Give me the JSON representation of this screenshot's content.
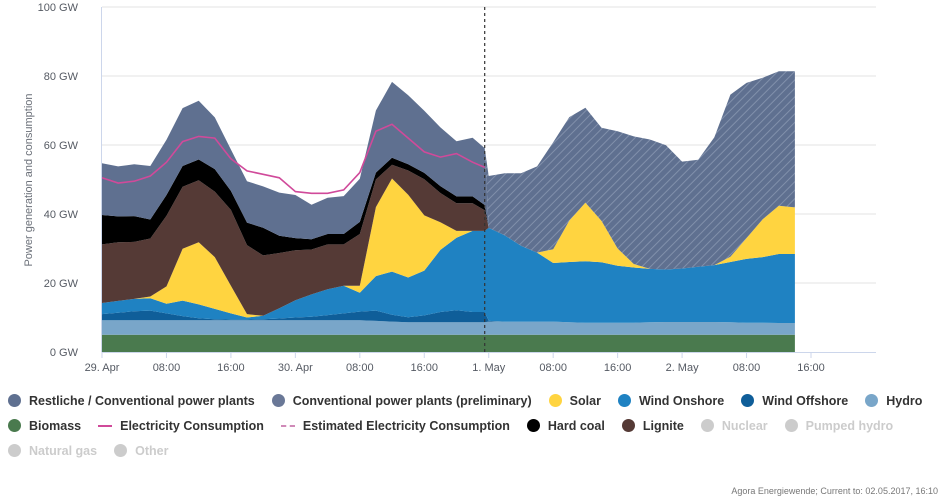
{
  "chart_data": {
    "type": "area",
    "title": "",
    "ylabel": "Power generation and consumption",
    "xlabel": "",
    "ylim": [
      0,
      100
    ],
    "y_unit": "GW",
    "y_ticks": [
      "0 GW",
      "20 GW",
      "40 GW",
      "60 GW",
      "80 GW",
      "100 GW"
    ],
    "y_tick_values": [
      0,
      20,
      40,
      60,
      80,
      100
    ],
    "x_ticks": [
      {
        "label": "29. Apr",
        "hour": 0
      },
      {
        "label": "08:00",
        "hour": 8
      },
      {
        "label": "16:00",
        "hour": 16
      },
      {
        "label": "30. Apr",
        "hour": 24
      },
      {
        "label": "08:00",
        "hour": 32
      },
      {
        "label": "16:00",
        "hour": 40
      },
      {
        "label": "1. May",
        "hour": 48
      },
      {
        "label": "08:00",
        "hour": 56
      },
      {
        "label": "16:00",
        "hour": 64
      },
      {
        "label": "2. May",
        "hour": 72
      },
      {
        "label": "08:00",
        "hour": 80
      },
      {
        "label": "16:00",
        "hour": 88
      }
    ],
    "x_range_hours": [
      0,
      96
    ],
    "forecast_divider_hour": 47.5,
    "grid": true,
    "legend_position": "bottom",
    "x_hours": [
      0,
      2,
      4,
      6,
      8,
      10,
      12,
      14,
      16,
      18,
      20,
      22,
      24,
      26,
      28,
      30,
      32,
      34,
      36,
      38,
      40,
      42,
      44,
      46,
      47.5,
      48,
      50,
      52,
      54,
      56,
      58,
      60,
      62,
      64,
      66,
      68,
      70,
      72,
      74,
      76,
      78,
      80,
      82,
      84,
      86
    ],
    "series": [
      {
        "name": "Biomass",
        "color": "#4a7a4e",
        "stack": true,
        "values": [
          5,
          5,
          5,
          5,
          5,
          5,
          5,
          5,
          5,
          5,
          5,
          5,
          5,
          5,
          5,
          5,
          5,
          5,
          5,
          5,
          5,
          5,
          5,
          5,
          5,
          5,
          5,
          5,
          5,
          5,
          5,
          5,
          5,
          5,
          5,
          5,
          5,
          5,
          5,
          5,
          5,
          5,
          5,
          5,
          5
        ]
      },
      {
        "name": "Hydro",
        "color": "#79a6c9",
        "stack": true,
        "values": [
          4.2,
          4.2,
          4.2,
          4.2,
          4.2,
          4.2,
          4.2,
          4.2,
          4.2,
          4.2,
          4.2,
          4.2,
          4.2,
          4.2,
          4.2,
          4.2,
          4.2,
          4.0,
          3.8,
          3.6,
          3.6,
          3.6,
          3.6,
          3.6,
          3.6,
          3.8,
          3.8,
          3.8,
          3.8,
          3.8,
          3.6,
          3.5,
          3.5,
          3.5,
          3.5,
          3.6,
          3.7,
          3.7,
          3.7,
          3.7,
          3.6,
          3.5,
          3.5,
          3.4,
          3.4
        ]
      },
      {
        "name": "Wind Offshore",
        "color": "#0f5e99",
        "stack": true,
        "values": [
          1.8,
          2.2,
          2.6,
          2.8,
          2.0,
          1.2,
          0.6,
          0.3,
          0.2,
          0.2,
          0.3,
          0.5,
          0.8,
          1.0,
          1.5,
          2.0,
          2.5,
          3.0,
          2.0,
          1.5,
          2.0,
          3.0,
          3.5,
          3.0,
          3.0,
          0.2,
          0,
          0,
          0,
          0,
          0,
          0,
          0,
          0,
          0,
          0,
          0,
          0,
          0,
          0,
          0,
          0,
          0,
          0,
          0
        ]
      },
      {
        "name": "Wind Onshore",
        "color": "#1f82c2",
        "stack": true,
        "values": [
          3.2,
          3.4,
          3.6,
          3.6,
          2.8,
          4.5,
          4.0,
          3.0,
          1.8,
          0.6,
          1.0,
          3.0,
          5.0,
          6.5,
          7.5,
          8.0,
          5.5,
          10.0,
          12.5,
          11.5,
          13.0,
          18.0,
          21.0,
          23.5,
          23.5,
          27.0,
          25.0,
          22.0,
          20.0,
          17.0,
          17.5,
          17.8,
          17.5,
          16.5,
          16.0,
          15.5,
          15.2,
          15.5,
          16.0,
          16.5,
          17.5,
          18.5,
          19.0,
          20.0,
          20.0
        ]
      },
      {
        "name": "Solar",
        "color": "#ffd440",
        "stack": true,
        "values": [
          0,
          0,
          0,
          0.5,
          5.0,
          15.0,
          18.0,
          15.0,
          8.0,
          1.0,
          0,
          0,
          0,
          0,
          0,
          0,
          2.0,
          20.0,
          27.0,
          24.0,
          16.0,
          8.0,
          2.0,
          0,
          0,
          0,
          0,
          0,
          0,
          4.0,
          12.0,
          17.0,
          12.0,
          5.0,
          1.0,
          0,
          0,
          0,
          0,
          0,
          1.5,
          6.0,
          11.0,
          14.0,
          13.5
        ]
      },
      {
        "name": "Lignite",
        "color": "#553a36",
        "stack": true,
        "values": [
          17.0,
          17.0,
          16.5,
          16.8,
          20.5,
          18.0,
          18.0,
          19.0,
          22.0,
          20.0,
          17.5,
          16.0,
          14.5,
          13.0,
          13.0,
          12.0,
          15.0,
          8.0,
          4.0,
          7.0,
          10.5,
          8.5,
          8.0,
          8.0,
          6.0,
          0,
          0,
          0,
          0,
          0,
          0,
          0,
          0,
          0,
          0,
          0,
          0,
          0,
          0,
          0,
          0,
          0,
          0,
          0,
          0
        ]
      },
      {
        "name": "Hard coal",
        "color": "#000000",
        "stack": true,
        "values": [
          8.5,
          7.5,
          7.5,
          5.5,
          6.0,
          6.0,
          6.0,
          6.5,
          5.5,
          6.5,
          8.0,
          5.0,
          3.5,
          3.0,
          3.0,
          3.0,
          3.5,
          2.0,
          2.0,
          1.8,
          1.8,
          2.0,
          2.0,
          2.0,
          1.5,
          0,
          0,
          0,
          0,
          0,
          0,
          0,
          0,
          0,
          0,
          0,
          0,
          0,
          0,
          0,
          0,
          0,
          0,
          0,
          0
        ]
      },
      {
        "name": "Restliche / Conventional power plants",
        "color": "#5f7090",
        "stack": true,
        "values": [
          15.0,
          14.5,
          15.0,
          15.5,
          16.0,
          16.8,
          17.0,
          15.0,
          12.0,
          12.0,
          12.0,
          12.5,
          12.5,
          10.0,
          10.5,
          11.0,
          12.5,
          18.0,
          22.0,
          20.0,
          18.0,
          17.0,
          16.0,
          17.0,
          16.5,
          0,
          0,
          0,
          0,
          0,
          0,
          0,
          0,
          0,
          0,
          0,
          0,
          0,
          0,
          0,
          0,
          0,
          0,
          0,
          0
        ]
      },
      {
        "name": "Conventional power plants (preliminary)",
        "color": "#5f7090",
        "stack": true,
        "hatched": true,
        "values": [
          0,
          0,
          0,
          0,
          0,
          0,
          0,
          0,
          0,
          0,
          0,
          0,
          0,
          0,
          0,
          0,
          0,
          0,
          0,
          0,
          0,
          0,
          0,
          0,
          0,
          15.0,
          18.0,
          21.0,
          25.0,
          31.0,
          30.0,
          27.5,
          27.0,
          34.0,
          37.0,
          37.5,
          36.0,
          31.0,
          31.0,
          37.0,
          47.0,
          45.0,
          41.0,
          39.0,
          39.5
        ]
      },
      {
        "name": "Electricity Consumption",
        "color": "#d04a9a",
        "type": "line",
        "values": [
          50.5,
          49.0,
          49.5,
          51.0,
          55.0,
          61.0,
          62.5,
          62.0,
          56.0,
          52.5,
          51.5,
          50.5,
          46.5,
          46.0,
          46.0,
          47.0,
          52.0,
          64.0,
          66.0,
          62.0,
          58.0,
          56.5,
          57.5,
          55.0,
          53.5,
          null,
          null,
          null,
          null,
          null,
          null,
          null,
          null,
          null,
          null,
          null,
          null,
          null,
          null,
          null,
          null,
          null,
          null,
          null,
          null
        ]
      },
      {
        "name": "Estimated Electricity Consumption",
        "color": "#d08ab8",
        "type": "dashed-line",
        "values": []
      }
    ],
    "legend": [
      {
        "name": "Restliche / Conventional power plants",
        "color": "#5f7090",
        "symbol": "dot",
        "enabled": true
      },
      {
        "name": "Conventional power plants (preliminary)",
        "color": "#6a7897",
        "symbol": "dot",
        "enabled": true
      },
      {
        "name": "Solar",
        "color": "#ffd440",
        "symbol": "dot",
        "enabled": true
      },
      {
        "name": "Wind Onshore",
        "color": "#1f82c2",
        "symbol": "dot",
        "enabled": true
      },
      {
        "name": "Wind Offshore",
        "color": "#0f5e99",
        "symbol": "dot",
        "enabled": true
      },
      {
        "name": "Hydro",
        "color": "#79a6c9",
        "symbol": "dot",
        "enabled": true
      },
      {
        "name": "Biomass",
        "color": "#4a7a4e",
        "symbol": "dot",
        "enabled": true
      },
      {
        "name": "Electricity Consumption",
        "color": "#d04a9a",
        "symbol": "line",
        "enabled": true
      },
      {
        "name": "Estimated Electricity Consumption",
        "color": "#d08ab8",
        "symbol": "dashed",
        "enabled": true
      },
      {
        "name": "Hard coal",
        "color": "#000000",
        "symbol": "dot",
        "enabled": true
      },
      {
        "name": "Lignite",
        "color": "#553a36",
        "symbol": "dot",
        "enabled": true
      },
      {
        "name": "Nuclear",
        "color": "#cccccc",
        "symbol": "dot",
        "enabled": false
      },
      {
        "name": "Pumped hydro",
        "color": "#cccccc",
        "symbol": "dot",
        "enabled": false
      },
      {
        "name": "Natural gas",
        "color": "#cccccc",
        "symbol": "dot",
        "enabled": false
      },
      {
        "name": "Other",
        "color": "#cccccc",
        "symbol": "dot",
        "enabled": false
      }
    ],
    "legend_rows": [
      [
        0,
        1,
        2,
        3,
        4,
        5
      ],
      [
        6,
        7,
        8,
        9,
        10,
        11,
        12
      ],
      [
        13,
        14
      ]
    ]
  },
  "footer": {
    "source": "Agora Energiewende; Current to: 02.05.2017, 16:10"
  }
}
